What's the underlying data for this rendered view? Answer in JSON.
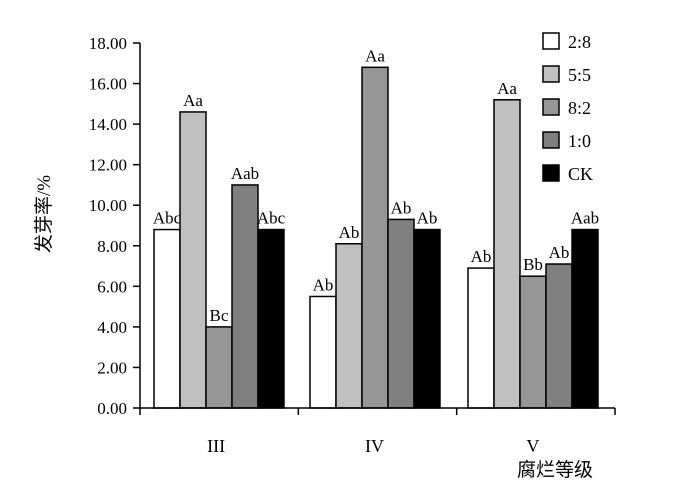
{
  "chart_data": {
    "type": "bar",
    "xlabel": "腐烂等级",
    "ylabel": "发芽率/%",
    "ylim": [
      0,
      18
    ],
    "yticks": [
      "0.00",
      "2.00",
      "4.00",
      "6.00",
      "8.00",
      "10.00",
      "12.00",
      "14.00",
      "16.00",
      "18.00"
    ],
    "categories": [
      "III",
      "IV",
      "V"
    ],
    "legend_position": "top-right",
    "grid": false,
    "series": [
      {
        "name": "2:8",
        "color": "#ffffff",
        "values": [
          8.8,
          5.5,
          6.9
        ],
        "labels": [
          "Abc",
          "Ab",
          "Ab"
        ]
      },
      {
        "name": "5:5",
        "color": "#c0c0c0",
        "values": [
          14.6,
          8.1,
          15.2
        ],
        "labels": [
          "Aa",
          "Ab",
          "Aa"
        ]
      },
      {
        "name": "8:2",
        "color": "#969696",
        "values": [
          4.0,
          16.8,
          6.5
        ],
        "labels": [
          "Bc",
          "Aa",
          "Bb"
        ]
      },
      {
        "name": "1:0",
        "color": "#808080",
        "values": [
          11.0,
          9.3,
          7.1
        ],
        "labels": [
          "Aab",
          "Ab",
          "Ab"
        ]
      },
      {
        "name": "CK",
        "color": "#000000",
        "values": [
          8.8,
          8.8,
          8.8
        ],
        "labels": [
          "Abc",
          "Ab",
          "Aab"
        ]
      }
    ]
  }
}
